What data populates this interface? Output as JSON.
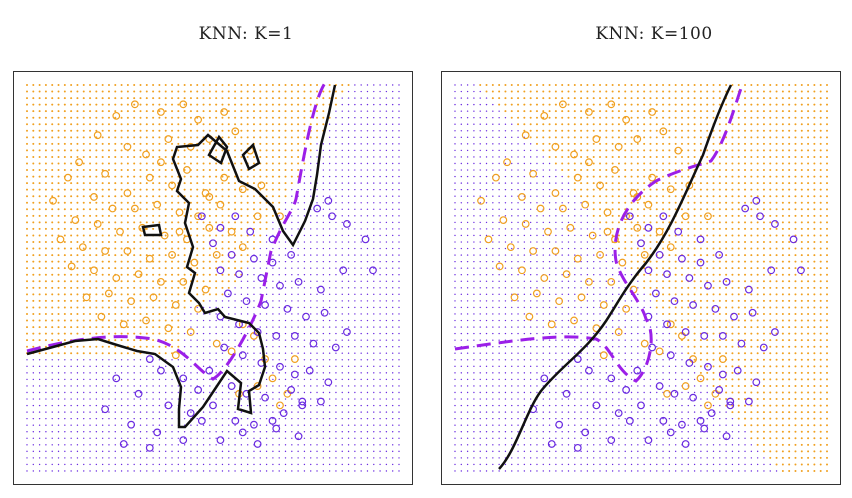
{
  "chart_data": [
    {
      "type": "scatter",
      "title": "KNN: K=1",
      "xlabel": "",
      "ylabel": "",
      "xlim": [
        0,
        1
      ],
      "ylim": [
        0,
        1
      ],
      "grid": "dotted background lattice colored by predicted class",
      "classes": [
        {
          "name": "orange",
          "color": "#F0A020"
        },
        {
          "name": "blue",
          "color": "#6A2BE0"
        }
      ],
      "boundary_style": {
        "knn": "solid black",
        "bayes": "dashed purple"
      }
    },
    {
      "type": "scatter",
      "title": "KNN: K=100",
      "xlabel": "",
      "ylabel": "",
      "xlim": [
        0,
        1
      ],
      "ylim": [
        0,
        1
      ],
      "grid": "dotted background lattice colored by predicted class",
      "classes": [
        {
          "name": "orange",
          "color": "#F0A020"
        },
        {
          "name": "blue",
          "color": "#6A2BE0"
        }
      ],
      "boundary_style": {
        "knn": "solid black",
        "bayes": "dashed purple"
      }
    }
  ],
  "points": {
    "orange": [
      [
        0.24,
        0.92
      ],
      [
        0.29,
        0.95
      ],
      [
        0.36,
        0.93
      ],
      [
        0.42,
        0.95
      ],
      [
        0.46,
        0.91
      ],
      [
        0.53,
        0.93
      ],
      [
        0.19,
        0.87
      ],
      [
        0.27,
        0.84
      ],
      [
        0.32,
        0.82
      ],
      [
        0.38,
        0.86
      ],
      [
        0.44,
        0.84
      ],
      [
        0.49,
        0.86
      ],
      [
        0.56,
        0.88
      ],
      [
        0.6,
        0.83
      ],
      [
        0.14,
        0.8
      ],
      [
        0.21,
        0.77
      ],
      [
        0.27,
        0.72
      ],
      [
        0.33,
        0.76
      ],
      [
        0.39,
        0.74
      ],
      [
        0.43,
        0.78
      ],
      [
        0.48,
        0.72
      ],
      [
        0.53,
        0.76
      ],
      [
        0.58,
        0.73
      ],
      [
        0.11,
        0.76
      ],
      [
        0.18,
        0.71
      ],
      [
        0.23,
        0.68
      ],
      [
        0.29,
        0.68
      ],
      [
        0.35,
        0.69
      ],
      [
        0.41,
        0.67
      ],
      [
        0.46,
        0.66
      ],
      [
        0.52,
        0.69
      ],
      [
        0.63,
        0.74
      ],
      [
        0.07,
        0.7
      ],
      [
        0.13,
        0.65
      ],
      [
        0.19,
        0.64
      ],
      [
        0.25,
        0.62
      ],
      [
        0.31,
        0.63
      ],
      [
        0.37,
        0.61
      ],
      [
        0.43,
        0.6
      ],
      [
        0.49,
        0.63
      ],
      [
        0.55,
        0.62
      ],
      [
        0.62,
        0.66
      ],
      [
        0.68,
        0.66
      ],
      [
        0.09,
        0.6
      ],
      [
        0.15,
        0.58
      ],
      [
        0.21,
        0.57
      ],
      [
        0.27,
        0.57
      ],
      [
        0.33,
        0.55
      ],
      [
        0.39,
        0.56
      ],
      [
        0.45,
        0.54
      ],
      [
        0.51,
        0.56
      ],
      [
        0.58,
        0.58
      ],
      [
        0.12,
        0.53
      ],
      [
        0.18,
        0.52
      ],
      [
        0.24,
        0.5
      ],
      [
        0.3,
        0.51
      ],
      [
        0.36,
        0.49
      ],
      [
        0.42,
        0.49
      ],
      [
        0.48,
        0.47
      ],
      [
        0.16,
        0.45
      ],
      [
        0.22,
        0.46
      ],
      [
        0.28,
        0.44
      ],
      [
        0.34,
        0.45
      ],
      [
        0.4,
        0.43
      ],
      [
        0.46,
        0.42
      ],
      [
        0.2,
        0.4
      ],
      [
        0.26,
        0.38
      ],
      [
        0.32,
        0.39
      ],
      [
        0.38,
        0.37
      ],
      [
        0.44,
        0.36
      ],
      [
        0.51,
        0.33
      ],
      [
        0.58,
        0.38
      ],
      [
        0.55,
        0.31
      ],
      [
        0.61,
        0.35
      ],
      [
        0.64,
        0.29
      ],
      [
        0.66,
        0.24
      ],
      [
        0.7,
        0.2
      ],
      [
        0.72,
        0.29
      ],
      [
        0.68,
        0.17
      ],
      [
        0.49,
        0.71
      ],
      [
        0.41,
        0.62
      ],
      [
        0.36,
        0.8
      ],
      [
        0.57,
        0.2
      ],
      [
        0.62,
        0.22
      ],
      [
        0.4,
        0.3
      ]
    ],
    "blue": [
      [
        0.47,
        0.66
      ],
      [
        0.52,
        0.63
      ],
      [
        0.56,
        0.66
      ],
      [
        0.6,
        0.62
      ],
      [
        0.66,
        0.6
      ],
      [
        0.5,
        0.59
      ],
      [
        0.55,
        0.56
      ],
      [
        0.61,
        0.55
      ],
      [
        0.66,
        0.54
      ],
      [
        0.71,
        0.56
      ],
      [
        0.78,
        0.68
      ],
      [
        0.81,
        0.7
      ],
      [
        0.82,
        0.66
      ],
      [
        0.86,
        0.64
      ],
      [
        0.91,
        0.6
      ],
      [
        0.93,
        0.52
      ],
      [
        0.52,
        0.52
      ],
      [
        0.57,
        0.51
      ],
      [
        0.63,
        0.5
      ],
      [
        0.68,
        0.48
      ],
      [
        0.73,
        0.49
      ],
      [
        0.79,
        0.47
      ],
      [
        0.85,
        0.52
      ],
      [
        0.54,
        0.46
      ],
      [
        0.59,
        0.44
      ],
      [
        0.64,
        0.43
      ],
      [
        0.7,
        0.42
      ],
      [
        0.75,
        0.4
      ],
      [
        0.8,
        0.41
      ],
      [
        0.52,
        0.4
      ],
      [
        0.57,
        0.38
      ],
      [
        0.62,
        0.36
      ],
      [
        0.67,
        0.35
      ],
      [
        0.72,
        0.35
      ],
      [
        0.77,
        0.33
      ],
      [
        0.83,
        0.32
      ],
      [
        0.86,
        0.36
      ],
      [
        0.53,
        0.32
      ],
      [
        0.58,
        0.3
      ],
      [
        0.63,
        0.28
      ],
      [
        0.68,
        0.27
      ],
      [
        0.72,
        0.25
      ],
      [
        0.76,
        0.26
      ],
      [
        0.81,
        0.23
      ],
      [
        0.33,
        0.29
      ],
      [
        0.36,
        0.26
      ],
      [
        0.42,
        0.24
      ],
      [
        0.49,
        0.26
      ],
      [
        0.55,
        0.22
      ],
      [
        0.59,
        0.2
      ],
      [
        0.64,
        0.19
      ],
      [
        0.69,
        0.15
      ],
      [
        0.74,
        0.17
      ],
      [
        0.24,
        0.24
      ],
      [
        0.3,
        0.2
      ],
      [
        0.38,
        0.17
      ],
      [
        0.44,
        0.15
      ],
      [
        0.5,
        0.17
      ],
      [
        0.56,
        0.13
      ],
      [
        0.61,
        0.12
      ],
      [
        0.67,
        0.11
      ],
      [
        0.73,
        0.09
      ],
      [
        0.21,
        0.16
      ],
      [
        0.28,
        0.12
      ],
      [
        0.35,
        0.1
      ],
      [
        0.42,
        0.08
      ],
      [
        0.52,
        0.08
      ],
      [
        0.62,
        0.07
      ],
      [
        0.74,
        0.18
      ],
      [
        0.26,
        0.07
      ],
      [
        0.46,
        0.21
      ],
      [
        0.47,
        0.13
      ],
      [
        0.66,
        0.13
      ],
      [
        0.71,
        0.21
      ],
      [
        0.79,
        0.18
      ],
      [
        0.58,
        0.1
      ],
      [
        0.33,
        0.06
      ]
    ]
  }
}
